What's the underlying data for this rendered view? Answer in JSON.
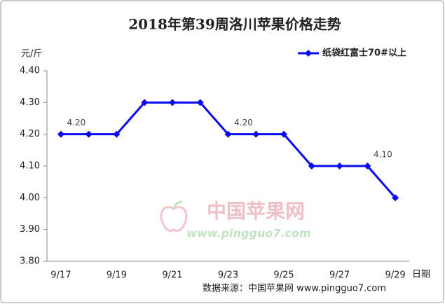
{
  "chart_data": {
    "type": "line",
    "title": "2018年第39周洛川苹果价格走势",
    "y_label": "元/斤",
    "x_label": "日期",
    "source": "数据来源：中国苹果网 www.pingguo7.com",
    "watermark": {
      "name": "中国苹果网",
      "url": "www.pingguo7.com"
    },
    "categories": [
      "9/17",
      null,
      "9/19",
      null,
      "9/21",
      null,
      "9/23",
      null,
      "9/25",
      null,
      "9/27",
      null,
      "9/29"
    ],
    "series": [
      {
        "name": "纸袋红富士70#以上",
        "color": "#0a0af0",
        "values": [
          4.2,
          4.2,
          4.2,
          4.3,
          4.3,
          4.3,
          4.2,
          4.2,
          4.2,
          4.1,
          4.1,
          4.1,
          4.0
        ],
        "value_labels": [
          "4.20",
          null,
          null,
          null,
          null,
          null,
          "4.20",
          null,
          null,
          null,
          null,
          "4.10",
          null
        ]
      }
    ],
    "ylim": [
      3.8,
      4.4
    ],
    "yticks": [
      {
        "value": 3.8,
        "label": "3.80"
      },
      {
        "value": 3.9,
        "label": "3.90"
      },
      {
        "value": 4.0,
        "label": "4.00"
      },
      {
        "value": 4.1,
        "label": "4.10"
      },
      {
        "value": 4.2,
        "label": "4.20"
      },
      {
        "value": 4.3,
        "label": "4.30"
      },
      {
        "value": 4.4,
        "label": "4.40"
      }
    ],
    "grid": false,
    "legend": "top-right"
  }
}
